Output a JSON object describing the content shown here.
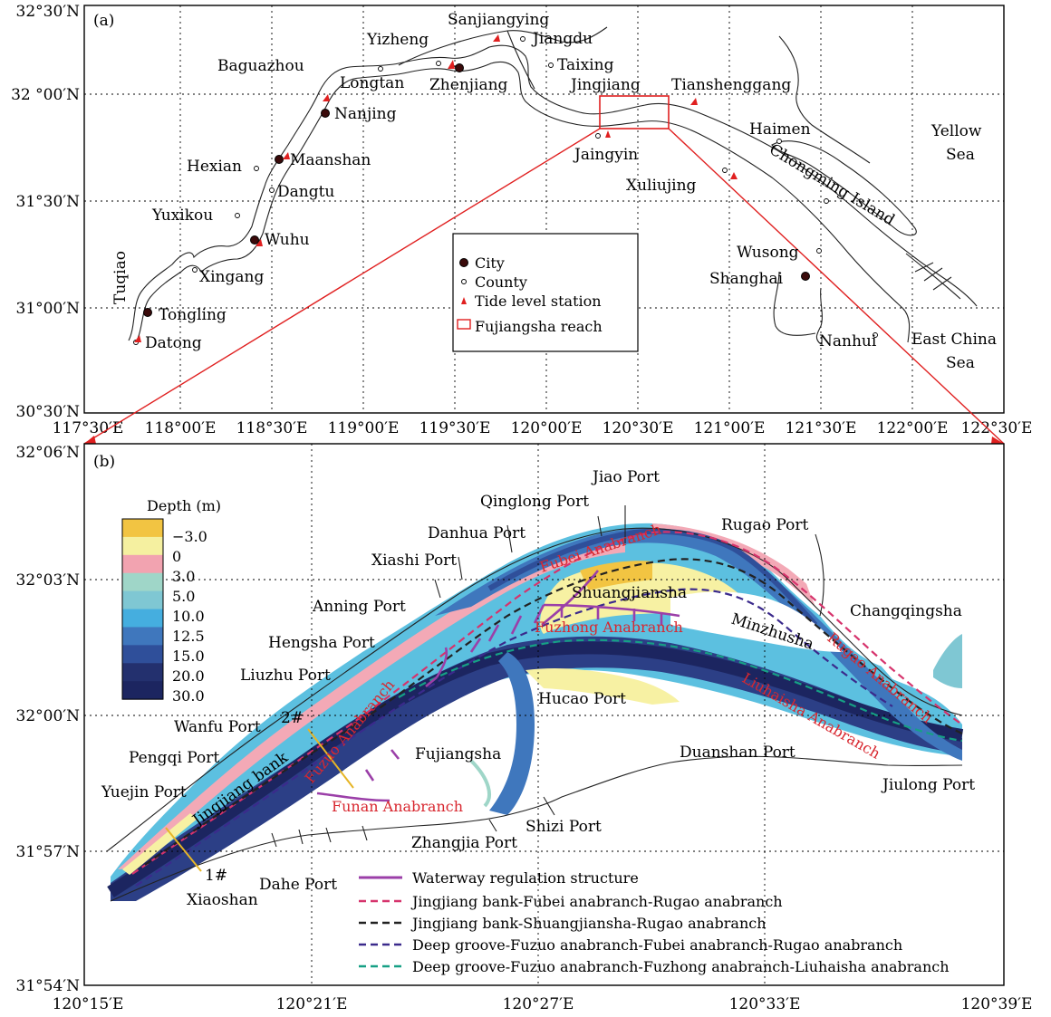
{
  "panel_a": {
    "tag": "(a)",
    "lat_ticks": [
      "32°30′N",
      "32 °00′N",
      "31°30′N",
      "31°00′N",
      "30°30′N"
    ],
    "lon_ticks": [
      "117°30′E",
      "118°00′E",
      "118°30′E",
      "119°00′E",
      "119°30′E",
      "120°00′E",
      "120°30′E",
      "121°00′E",
      "121°30′E",
      "122°00′E",
      "122°30′E"
    ],
    "places": {
      "sanjiangying": "Sanjiangying",
      "yizheng": "Yizheng",
      "jiangdu": "Jiangdu",
      "baguazhou": "Baguazhou",
      "taixing": "Taixing",
      "longtan": "Longtan",
      "zhenjiang": "Zhenjiang",
      "jingjiang": "Jingjiang",
      "tianshenggang": "Tianshenggang",
      "nanjing": "Nanjing",
      "haimen": "Haimen",
      "yellow_sea_1": "Yellow",
      "yellow_sea_2": "Sea",
      "hexian": "Hexian",
      "maanshan": "Maanshan",
      "jaingyin": "Jaingyin",
      "xuliujing": "Xuliujing",
      "chongming": "Chongming Island",
      "dangtu": "Dangtu",
      "yuxikou": "Yuxikou",
      "wuhu": "Wuhu",
      "wusong": "Wusong",
      "shanghai": "Shanghai",
      "tuqiao": "Tuqiao",
      "xingang": "Xingang",
      "tongling": "Tongling",
      "datong": "Datong",
      "nanhui": "Nanhui",
      "ecs_1": "East China",
      "ecs_2": "Sea"
    },
    "legend": {
      "city": "City",
      "county": "County",
      "tide": "Tide level station",
      "reach": "Fujiangsha reach"
    }
  },
  "panel_b": {
    "tag": "(b)",
    "lat_ticks": [
      "32°06′N",
      "32°03′N",
      "32°00′N",
      "31°57′N",
      "31°54′N"
    ],
    "lon_ticks": [
      "120°15′E",
      "120°21′E",
      "120°27′E",
      "120°33′E",
      "120°39′E"
    ],
    "depth_legend": {
      "title": "Depth (m)",
      "levels": [
        "−3.0",
        "0",
        "3.0",
        "5.0",
        "10.0",
        "12.5",
        "15.0",
        "20.0",
        "30.0"
      ],
      "colors": [
        "#f2c442",
        "#f5f0a0",
        "#f2a3b0",
        "#9fd6c8",
        "#7fc7d3",
        "#45aedf",
        "#3f77bd",
        "#2f4f9a",
        "#23306e",
        "#1c2560"
      ]
    },
    "places": {
      "jiao": "Jiao Port",
      "qinglong": "Qinglong Port",
      "danhua": "Danhua Port",
      "rugao": "Rugao Port",
      "xiashi": "Xiashi Port",
      "shuangjiansha": "Shuangjiansha",
      "changqingsha": "Changqingsha",
      "anning": "Anning Port",
      "minzhusha": "Minzhusha",
      "hengsha": "Hengsha Port",
      "liuzhu": "Liuzhu Port",
      "hucao": "Hucao Port",
      "wanfu": "Wanfu Port",
      "fujiangsha": "Fujiangsha",
      "pengqi": "Pengqi Port",
      "duanshan": "Duanshan Port",
      "jiulong": "Jiulong Port",
      "yuejin": "Yuejin Port",
      "shizi": "Shizi  Port",
      "zhangjia": "Zhangjia Port",
      "dahe": "Dahe Port",
      "xiaoshan": "Xiaoshan",
      "jingjiang_bank": "Jingjiang bank",
      "sec1": "1#",
      "sec2": "2#"
    },
    "channels": {
      "fubei": "Fubei Anabranch",
      "fuzhong": "Fuzhong Anabranch",
      "fuzuo": "Fuzuo Anabranch",
      "funan": "Funan Anabranch",
      "rugao": "Rugao Anabranch",
      "liuhaisha": "Liuhaisha Anabranch"
    },
    "route_legend": [
      {
        "label": "Waterway regulation structure",
        "color": "#9b3fa8"
      },
      {
        "label": "Jingjiang bank-Fubei anabranch-Rugao anabranch",
        "color": "#d6336c"
      },
      {
        "label": "Jingjiang bank-Shuangjiansha-Rugao anabranch",
        "color": "#222222"
      },
      {
        "label": "Deep groove-Fuzuo anabranch-Fubei anabranch-Rugao anabranch",
        "color": "#3b2a8c"
      },
      {
        "label": "Deep groove-Fuzuo anabranch-Fuzhong anabranch-Liuhaisha anabranch",
        "color": "#16a085"
      }
    ]
  }
}
